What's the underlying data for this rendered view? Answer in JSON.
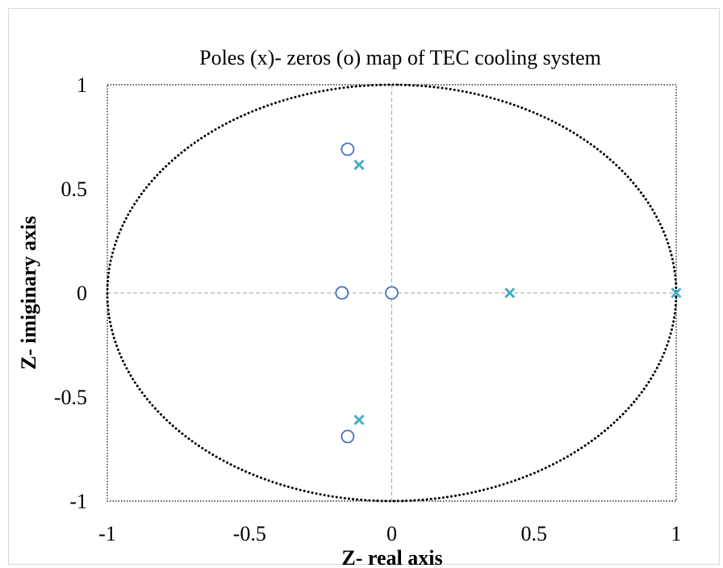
{
  "chart_data": {
    "type": "scatter",
    "title": "Poles (x)- zeros (o) map of TEC cooling system",
    "xlabel": "Z- real axis",
    "ylabel": "Z- imiginary axis",
    "xlim": [
      -1,
      1
    ],
    "ylim": [
      -1,
      1
    ],
    "x_ticks": [
      {
        "value": -1,
        "label": "-1"
      },
      {
        "value": -0.5,
        "label": "-0.5"
      },
      {
        "value": 0,
        "label": "0"
      },
      {
        "value": 0.5,
        "label": "0.5"
      },
      {
        "value": 1,
        "label": "1"
      }
    ],
    "y_ticks": [
      {
        "value": 1,
        "label": "1"
      },
      {
        "value": 0.5,
        "label": "0.5"
      },
      {
        "value": 0,
        "label": "0"
      },
      {
        "value": -0.5,
        "label": "-0.5"
      },
      {
        "value": -1,
        "label": "-1"
      }
    ],
    "unit_circle": {
      "radius": 1,
      "style": "dotted"
    },
    "grid": false,
    "series": [
      {
        "marker": "o",
        "color": "#4472c4",
        "points": [
          {
            "x": -0.155,
            "y": 0.69
          },
          {
            "x": -0.175,
            "y": 0.0
          },
          {
            "x": 0.0,
            "y": 0.0
          },
          {
            "x": -0.155,
            "y": -0.69
          }
        ]
      },
      {
        "marker": "x",
        "color": "#4bacc6",
        "points": [
          {
            "x": -0.115,
            "y": 0.615
          },
          {
            "x": 0.415,
            "y": 0.0
          },
          {
            "x": 1.0,
            "y": 0.0
          },
          {
            "x": -0.115,
            "y": -0.61
          }
        ]
      }
    ]
  }
}
